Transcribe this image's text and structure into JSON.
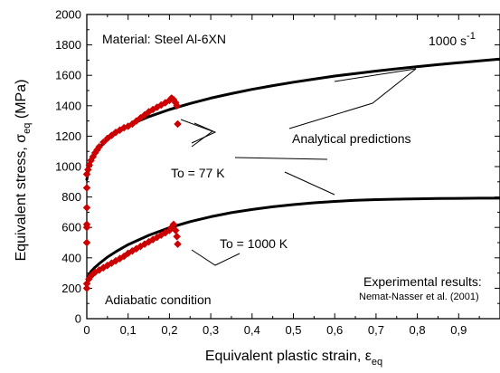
{
  "chart_data": {
    "type": "scatter",
    "xlabel": "Equivalent plastic strain, ε",
    "xlabel_sub": "eq",
    "ylabel": "Equivalent stress, σ",
    "ylabel_sub": "eq",
    "ylabel_unit": " (MPa)",
    "xlim": [
      0,
      1.0
    ],
    "ylim": [
      0,
      2000
    ],
    "x_ticks": [
      0,
      0.1,
      0.2,
      0.3,
      0.4,
      0.5,
      0.6,
      0.7,
      0.8,
      0.9
    ],
    "x_tick_labels": [
      "0",
      "0,1",
      "0,2",
      "0,3",
      "0,4",
      "0,5",
      "0,6",
      "0,7",
      "0,8",
      "0,9"
    ],
    "y_ticks": [
      0,
      200,
      400,
      600,
      800,
      1000,
      1200,
      1400,
      1600,
      1800,
      2000
    ],
    "y_tick_labels": [
      "0",
      "200",
      "400",
      "600",
      "800",
      "1000",
      "1200",
      "1400",
      "1600",
      "1800",
      "2000"
    ],
    "grid": false,
    "annotations": {
      "material": "Material: Steel Al-6XN",
      "rate_value": "1000 s",
      "rate_exp": "-1",
      "analytical": "Analytical predictions",
      "t77": "To = 77 K",
      "t1000": "To = 1000 K",
      "exp1": "Experimental results:",
      "exp2": "Nemat-Nasser et al. (2001)",
      "adiabatic": "Adiabatic condition"
    },
    "series": [
      {
        "style": "line",
        "color": "#000000",
        "x": [
          0.0,
          0.005,
          0.01,
          0.02,
          0.03,
          0.05,
          0.07,
          0.1,
          0.15,
          0.2,
          0.25,
          0.3,
          0.35,
          0.4,
          0.45,
          0.5,
          0.55,
          0.6,
          0.65,
          0.7,
          0.75,
          0.8,
          0.85,
          0.9,
          0.95,
          1.0
        ],
        "y": [
          915,
          990,
          1030,
          1085,
          1125,
          1180,
          1222,
          1270,
          1328,
          1375,
          1415,
          1450,
          1480,
          1508,
          1532,
          1555,
          1575,
          1595,
          1612,
          1628,
          1643,
          1657,
          1670,
          1683,
          1695,
          1707
        ]
      },
      {
        "style": "line",
        "color": "#000000",
        "x": [
          0.0,
          0.005,
          0.01,
          0.02,
          0.03,
          0.05,
          0.07,
          0.1,
          0.15,
          0.2,
          0.25,
          0.3,
          0.35,
          0.4,
          0.45,
          0.5,
          0.55,
          0.6,
          0.65,
          0.7,
          0.75,
          0.8,
          0.85,
          0.9,
          0.95,
          1.0
        ],
        "y": [
          240,
          288,
          310,
          338,
          362,
          405,
          440,
          487,
          548,
          598,
          638,
          670,
          697,
          718,
          736,
          750,
          762,
          771,
          778,
          783,
          786,
          788,
          790,
          791,
          792,
          792
        ]
      },
      {
        "style": "marker",
        "color": "#cc0000",
        "x": [
          0.0,
          0.0,
          0.0,
          0.0,
          0.003,
          0.006,
          0.01,
          0.015,
          0.02,
          0.025,
          0.03,
          0.04,
          0.05,
          0.06,
          0.07,
          0.08,
          0.09,
          0.1,
          0.11,
          0.12,
          0.13,
          0.14,
          0.15,
          0.16,
          0.17,
          0.18,
          0.19,
          0.2,
          0.205,
          0.21,
          0.215,
          0.218,
          0.22
        ],
        "y": [
          620,
          730,
          860,
          950,
          980,
          1010,
          1040,
          1065,
          1090,
          1110,
          1130,
          1160,
          1185,
          1205,
          1225,
          1240,
          1255,
          1265,
          1280,
          1300,
          1320,
          1340,
          1360,
          1375,
          1390,
          1405,
          1420,
          1435,
          1450,
          1440,
          1420,
          1400,
          1280
        ]
      },
      {
        "style": "marker",
        "color": "#cc0000",
        "x": [
          0.0,
          0.0,
          0.0,
          0.0,
          0.005,
          0.01,
          0.015,
          0.02,
          0.03,
          0.04,
          0.05,
          0.06,
          0.07,
          0.08,
          0.09,
          0.1,
          0.11,
          0.12,
          0.13,
          0.14,
          0.15,
          0.16,
          0.17,
          0.18,
          0.19,
          0.2,
          0.205,
          0.21,
          0.215,
          0.218,
          0.22
        ],
        "y": [
          200,
          230,
          500,
          600,
          260,
          280,
          295,
          305,
          320,
          335,
          350,
          365,
          380,
          395,
          410,
          430,
          445,
          460,
          475,
          490,
          505,
          520,
          535,
          550,
          565,
          580,
          600,
          620,
          580,
          540,
          490
        ]
      }
    ]
  }
}
